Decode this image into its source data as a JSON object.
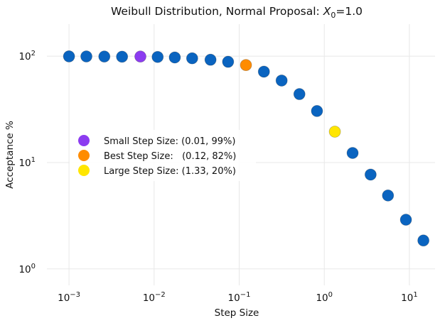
{
  "chart_data": {
    "type": "scatter",
    "title_prefix": "Weibull Distribution, Normal Proposal: ",
    "title_var": "X",
    "title_sub": "0",
    "title_suffix": "=1.0",
    "xlabel": "Step Size",
    "ylabel": "Acceptance %",
    "x_scale": "log",
    "y_scale": "log",
    "xlim": [
      0.00055,
      20
    ],
    "ylim": [
      0.7,
      200
    ],
    "grid": true,
    "x_ticks": [
      {
        "value": 0.001,
        "base": "10",
        "exp": "−3"
      },
      {
        "value": 0.01,
        "base": "10",
        "exp": "−2"
      },
      {
        "value": 0.1,
        "base": "10",
        "exp": "−1"
      },
      {
        "value": 1,
        "base": "10",
        "exp": "0"
      },
      {
        "value": 10,
        "base": "10",
        "exp": "1"
      }
    ],
    "y_ticks": [
      {
        "value": 1,
        "base": "10",
        "exp": "0"
      },
      {
        "value": 10,
        "base": "10",
        "exp": "1"
      },
      {
        "value": 100,
        "base": "10",
        "exp": "2"
      }
    ],
    "colors": {
      "points": "#0a64c0",
      "small": "#8c3cf0",
      "best": "#ff8c00",
      "large": "#ffe600"
    },
    "series": [
      {
        "role": "points",
        "x": [
          0.001,
          0.0016,
          0.0026,
          0.0042,
          0.011,
          0.0175,
          0.028,
          0.046,
          0.074,
          0.195,
          0.315,
          0.51,
          0.82,
          2.15,
          3.5,
          5.6,
          9.1,
          14.6
        ],
        "y": [
          99.5,
          99.4,
          99.2,
          98.8,
          98.3,
          97.2,
          95.5,
          92.5,
          88.5,
          71.5,
          59,
          44,
          30.5,
          12.3,
          7.7,
          4.9,
          2.9,
          1.85
        ]
      },
      {
        "role": "small",
        "name": "Small Step Size: (0.01, 99%)",
        "x": [
          0.0069
        ],
        "y": [
          99.2
        ]
      },
      {
        "role": "best",
        "name": "Best Step Size:   (0.12, 82%)",
        "x": [
          0.12
        ],
        "y": [
          82.5
        ]
      },
      {
        "role": "large",
        "name": "Large Step Size: (1.33, 20%)",
        "x": [
          1.33
        ],
        "y": [
          19.5
        ]
      }
    ],
    "legend": {
      "placement": "center-left",
      "entries": [
        {
          "role": "small",
          "label": "Small Step Size: (0.01, 99%)"
        },
        {
          "role": "best",
          "label": "Best Step Size:   (0.12, 82%)"
        },
        {
          "role": "large",
          "label": "Large Step Size: (1.33, 20%)"
        }
      ]
    }
  }
}
